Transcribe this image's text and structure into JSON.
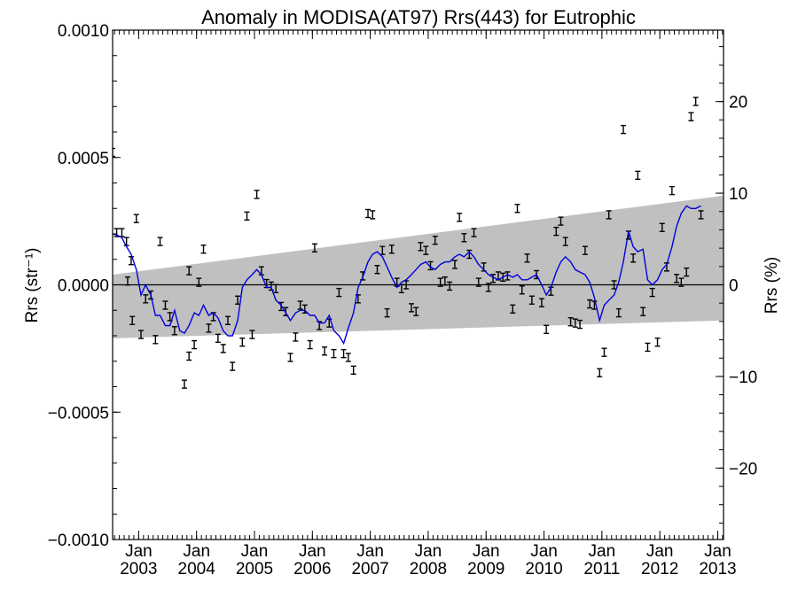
{
  "chart_data": {
    "type": "scatter",
    "title": "Anomaly in MODISA(AT97) Rrs(443) for Eutrophic",
    "ylabel_left": "Rrs (str⁻¹)",
    "ylabel_right": "Rrs (%)",
    "xlim": [
      2002.55,
      2013.1
    ],
    "ylim_left": [
      -0.001,
      0.001
    ],
    "ylim_right": [
      -27.8,
      27.8
    ],
    "left_ticks": [
      {
        "v": 0.001,
        "label": "0.0010"
      },
      {
        "v": 0.0005,
        "label": "0.0005"
      },
      {
        "v": 0.0,
        "label": "0.0000"
      },
      {
        "v": -0.0005,
        "label": "−0.0005"
      },
      {
        "v": -0.001,
        "label": "−0.0010"
      }
    ],
    "right_ticks": [
      {
        "v": 20,
        "label": "20"
      },
      {
        "v": 10,
        "label": "10"
      },
      {
        "v": 0,
        "label": "0"
      },
      {
        "v": -10,
        "label": "−10"
      },
      {
        "v": -20,
        "label": "−20"
      }
    ],
    "x_ticks": [
      {
        "v": 2003.0,
        "line1": "Jan",
        "line2": "2003"
      },
      {
        "v": 2004.0,
        "line1": "Jan",
        "line2": "2004"
      },
      {
        "v": 2005.0,
        "line1": "Jan",
        "line2": "2005"
      },
      {
        "v": 2006.0,
        "line1": "Jan",
        "line2": "2006"
      },
      {
        "v": 2007.0,
        "line1": "Jan",
        "line2": "2007"
      },
      {
        "v": 2008.0,
        "line1": "Jan",
        "line2": "2008"
      },
      {
        "v": 2009.0,
        "line1": "Jan",
        "line2": "2009"
      },
      {
        "v": 2010.0,
        "line1": "Jan",
        "line2": "2010"
      },
      {
        "v": 2011.0,
        "line1": "Jan",
        "line2": "2011"
      },
      {
        "v": 2012.0,
        "line1": "Jan",
        "line2": "2012"
      },
      {
        "v": 2013.0,
        "line1": "Jan",
        "line2": "2013"
      }
    ],
    "band": {
      "x": [
        2002.55,
        2013.1
      ],
      "upper": [
        4e-05,
        0.00035
      ],
      "lower": [
        -0.00021,
        -0.00014
      ]
    },
    "zero_line": 0.0,
    "colors": {
      "band": "#c0c0c0",
      "smooth": "#0000dd",
      "points": "#000000",
      "axes": "#000000"
    },
    "points": [
      [
        2002.55,
        0.00052
      ],
      [
        2002.62,
        0.000205
      ],
      [
        2002.71,
        0.000205
      ],
      [
        2002.79,
        0.00017
      ],
      [
        2002.87,
        9.5e-05
      ],
      [
        2002.96,
        0.00026
      ],
      [
        2002.81,
        1.5e-05
      ],
      [
        2002.89,
        -0.00014
      ],
      [
        2003.04,
        -0.000195
      ],
      [
        2003.12,
        -5.5e-05
      ],
      [
        2003.21,
        -4e-05
      ],
      [
        2003.29,
        -0.000215
      ],
      [
        2003.37,
        0.00017
      ],
      [
        2003.46,
        -8e-05
      ],
      [
        2003.54,
        -0.000125
      ],
      [
        2003.62,
        -0.00018
      ],
      [
        2003.79,
        -0.00039
      ],
      [
        2003.87,
        -0.00028
      ],
      [
        2003.87,
        5.5e-05
      ],
      [
        2003.96,
        -0.000235
      ],
      [
        2004.04,
        1e-05
      ],
      [
        2004.12,
        0.00014
      ],
      [
        2004.21,
        -0.00017
      ],
      [
        2004.29,
        -0.000125
      ],
      [
        2004.37,
        -0.00021
      ],
      [
        2004.46,
        -0.00025
      ],
      [
        2004.54,
        -0.00014
      ],
      [
        2004.62,
        -0.00032
      ],
      [
        2004.71,
        -6e-05
      ],
      [
        2004.79,
        -0.000225
      ],
      [
        2004.87,
        0.00027
      ],
      [
        2004.96,
        -0.000195
      ],
      [
        2005.04,
        0.000355
      ],
      [
        2005.12,
        5.5e-05
      ],
      [
        2005.21,
        5e-06
      ],
      [
        2005.29,
        -5e-06
      ],
      [
        2005.37,
        -1.5e-05
      ],
      [
        2005.46,
        -8.5e-05
      ],
      [
        2005.54,
        -0.000105
      ],
      [
        2005.62,
        -0.000285
      ],
      [
        2005.71,
        -0.000205
      ],
      [
        2005.79,
        -8e-05
      ],
      [
        2005.87,
        -9.5e-05
      ],
      [
        2005.96,
        -0.000235
      ],
      [
        2006.04,
        0.000145
      ],
      [
        2006.12,
        -0.00016
      ],
      [
        2006.21,
        -0.00026
      ],
      [
        2006.29,
        -0.00015
      ],
      [
        2006.37,
        -0.00027
      ],
      [
        2006.46,
        -3e-05
      ],
      [
        2006.54,
        -0.00027
      ],
      [
        2006.62,
        -0.000285
      ],
      [
        2006.71,
        -0.000335
      ],
      [
        2006.79,
        -5.5e-05
      ],
      [
        2006.87,
        3.5e-05
      ],
      [
        2006.96,
        0.00028
      ],
      [
        2007.04,
        0.000275
      ],
      [
        2007.12,
        6e-05
      ],
      [
        2007.21,
        0.000135
      ],
      [
        2007.29,
        -0.00011
      ],
      [
        2007.37,
        0.00014
      ],
      [
        2007.46,
        1e-05
      ],
      [
        2007.54,
        -1.5e-05
      ],
      [
        2007.62,
        0.0
      ],
      [
        2007.71,
        -9e-05
      ],
      [
        2007.79,
        -0.000105
      ],
      [
        2007.87,
        0.00015
      ],
      [
        2007.96,
        0.000135
      ],
      [
        2008.04,
        7.5e-05
      ],
      [
        2008.12,
        0.000175
      ],
      [
        2008.21,
        1e-05
      ],
      [
        2008.29,
        1.5e-05
      ],
      [
        2008.37,
        -5e-06
      ],
      [
        2008.46,
        8e-05
      ],
      [
        2008.54,
        0.000265
      ],
      [
        2008.62,
        0.000185
      ],
      [
        2008.71,
        0.00012
      ],
      [
        2008.79,
        0.000205
      ],
      [
        2008.87,
        1e-05
      ],
      [
        2008.96,
        7e-05
      ],
      [
        2009.04,
        -1e-05
      ],
      [
        2009.12,
        2.5e-05
      ],
      [
        2009.21,
        3.5e-05
      ],
      [
        2009.29,
        3e-05
      ],
      [
        2009.37,
        3.5e-05
      ],
      [
        2009.46,
        -9.5e-05
      ],
      [
        2009.54,
        0.0003
      ],
      [
        2009.62,
        -2e-05
      ],
      [
        2009.71,
        0.000105
      ],
      [
        2009.79,
        -6e-05
      ],
      [
        2009.87,
        4e-05
      ],
      [
        2009.96,
        -7e-05
      ],
      [
        2010.04,
        -0.000175
      ],
      [
        2010.12,
        -2.5e-05
      ],
      [
        2010.21,
        0.00021
      ],
      [
        2010.29,
        0.00025
      ],
      [
        2010.37,
        0.00017
      ],
      [
        2010.46,
        -0.000145
      ],
      [
        2010.54,
        -0.00015
      ],
      [
        2010.62,
        -0.000155
      ],
      [
        2010.71,
        0.000135
      ],
      [
        2010.79,
        -7.5e-05
      ],
      [
        2010.87,
        -8e-05
      ],
      [
        2010.96,
        -0.000345
      ],
      [
        2011.04,
        -0.000265
      ],
      [
        2011.12,
        0.000275
      ],
      [
        2011.21,
        0.0
      ],
      [
        2011.29,
        -0.00011
      ],
      [
        2011.37,
        0.00061
      ],
      [
        2011.46,
        0.000195
      ],
      [
        2011.54,
        0.000105
      ],
      [
        2011.62,
        0.00043
      ],
      [
        2011.71,
        -0.000105
      ],
      [
        2011.79,
        -0.000245
      ],
      [
        2011.87,
        -3e-05
      ],
      [
        2011.96,
        -0.000225
      ],
      [
        2012.04,
        0.000225
      ],
      [
        2012.12,
        7e-05
      ],
      [
        2012.21,
        0.00037
      ],
      [
        2012.29,
        2.5e-05
      ],
      [
        2012.37,
        1e-05
      ],
      [
        2012.46,
        5e-05
      ],
      [
        2012.54,
        0.00066
      ],
      [
        2012.62,
        0.00072
      ],
      [
        2012.71,
        0.000275
      ]
    ],
    "smooth": [
      [
        2002.55,
        0.0002
      ],
      [
        2002.63,
        0.000195
      ],
      [
        2002.71,
        0.000185
      ],
      [
        2002.79,
        0.00015
      ],
      [
        2002.87,
        0.00012
      ],
      [
        2002.96,
        6e-05
      ],
      [
        2003.04,
        -4e-05
      ],
      [
        2003.12,
        0.0
      ],
      [
        2003.21,
        -4e-05
      ],
      [
        2003.29,
        -0.00012
      ],
      [
        2003.37,
        -0.00012
      ],
      [
        2003.46,
        -0.00016
      ],
      [
        2003.54,
        -0.00016
      ],
      [
        2003.62,
        -0.0001
      ],
      [
        2003.71,
        -0.00018
      ],
      [
        2003.79,
        -0.00019
      ],
      [
        2003.87,
        -0.00016
      ],
      [
        2003.96,
        -0.00011
      ],
      [
        2004.04,
        -0.00012
      ],
      [
        2004.12,
        -8e-05
      ],
      [
        2004.21,
        -0.00012
      ],
      [
        2004.29,
        -0.00011
      ],
      [
        2004.37,
        -0.00013
      ],
      [
        2004.46,
        -0.00018
      ],
      [
        2004.54,
        -0.0002
      ],
      [
        2004.62,
        -0.0002
      ],
      [
        2004.71,
        -0.00014
      ],
      [
        2004.79,
        -1e-05
      ],
      [
        2004.87,
        2e-05
      ],
      [
        2004.96,
        4e-05
      ],
      [
        2005.04,
        6e-05
      ],
      [
        2005.12,
        4e-05
      ],
      [
        2005.21,
        -1e-05
      ],
      [
        2005.29,
        -1e-05
      ],
      [
        2005.37,
        -6e-05
      ],
      [
        2005.46,
        -8e-05
      ],
      [
        2005.54,
        -0.00011
      ],
      [
        2005.62,
        -0.00014
      ],
      [
        2005.71,
        -0.00011
      ],
      [
        2005.79,
        -0.0001
      ],
      [
        2005.87,
        -0.0001
      ],
      [
        2005.96,
        -0.00012
      ],
      [
        2006.04,
        -0.00012
      ],
      [
        2006.12,
        -0.00015
      ],
      [
        2006.21,
        -0.00015
      ],
      [
        2006.29,
        -0.00012
      ],
      [
        2006.37,
        -0.00018
      ],
      [
        2006.46,
        -0.0002
      ],
      [
        2006.54,
        -0.00023
      ],
      [
        2006.62,
        -0.00017
      ],
      [
        2006.71,
        -0.00011
      ],
      [
        2006.79,
        -1e-05
      ],
      [
        2006.87,
        3e-05
      ],
      [
        2006.96,
        9e-05
      ],
      [
        2007.04,
        0.00012
      ],
      [
        2007.12,
        0.00013
      ],
      [
        2007.21,
        0.00011
      ],
      [
        2007.29,
        7e-05
      ],
      [
        2007.37,
        3e-05
      ],
      [
        2007.46,
        -1e-05
      ],
      [
        2007.54,
        1e-05
      ],
      [
        2007.62,
        2e-05
      ],
      [
        2007.71,
        4e-05
      ],
      [
        2007.79,
        6e-05
      ],
      [
        2007.87,
        8e-05
      ],
      [
        2007.96,
        9e-05
      ],
      [
        2008.04,
        7e-05
      ],
      [
        2008.12,
        6e-05
      ],
      [
        2008.21,
        8e-05
      ],
      [
        2008.29,
        9e-05
      ],
      [
        2008.37,
        9e-05
      ],
      [
        2008.46,
        0.00011
      ],
      [
        2008.54,
        0.00012
      ],
      [
        2008.62,
        0.00011
      ],
      [
        2008.71,
        0.00013
      ],
      [
        2008.79,
        0.00011
      ],
      [
        2008.87,
        8e-05
      ],
      [
        2008.96,
        6e-05
      ],
      [
        2009.04,
        4e-05
      ],
      [
        2009.12,
        3e-05
      ],
      [
        2009.21,
        2e-05
      ],
      [
        2009.29,
        3e-05
      ],
      [
        2009.37,
        4e-05
      ],
      [
        2009.46,
        3e-05
      ],
      [
        2009.54,
        4e-05
      ],
      [
        2009.62,
        2e-05
      ],
      [
        2009.71,
        2e-05
      ],
      [
        2009.79,
        3e-05
      ],
      [
        2009.87,
        4e-05
      ],
      [
        2009.96,
        0.0
      ],
      [
        2010.04,
        -4e-05
      ],
      [
        2010.12,
        -1e-05
      ],
      [
        2010.21,
        5e-05
      ],
      [
        2010.29,
        9e-05
      ],
      [
        2010.37,
        0.00011
      ],
      [
        2010.46,
        9e-05
      ],
      [
        2010.54,
        6e-05
      ],
      [
        2010.62,
        5e-05
      ],
      [
        2010.71,
        4e-05
      ],
      [
        2010.79,
        1e-05
      ],
      [
        2010.87,
        -5e-05
      ],
      [
        2010.96,
        -0.00014
      ],
      [
        2011.04,
        -8e-05
      ],
      [
        2011.12,
        -6e-05
      ],
      [
        2011.21,
        -4e-05
      ],
      [
        2011.29,
        1e-05
      ],
      [
        2011.37,
        9e-05
      ],
      [
        2011.46,
        0.00021
      ],
      [
        2011.54,
        0.00015
      ],
      [
        2011.62,
        0.00013
      ],
      [
        2011.71,
        0.00014
      ],
      [
        2011.79,
        2e-05
      ],
      [
        2011.87,
        0.0
      ],
      [
        2011.96,
        2e-05
      ],
      [
        2012.04,
        6e-05
      ],
      [
        2012.12,
        8e-05
      ],
      [
        2012.21,
        0.00015
      ],
      [
        2012.29,
        0.00023
      ],
      [
        2012.37,
        0.00028
      ],
      [
        2012.46,
        0.00031
      ],
      [
        2012.54,
        0.0003
      ],
      [
        2012.62,
        0.0003
      ],
      [
        2012.71,
        0.00031
      ]
    ]
  }
}
